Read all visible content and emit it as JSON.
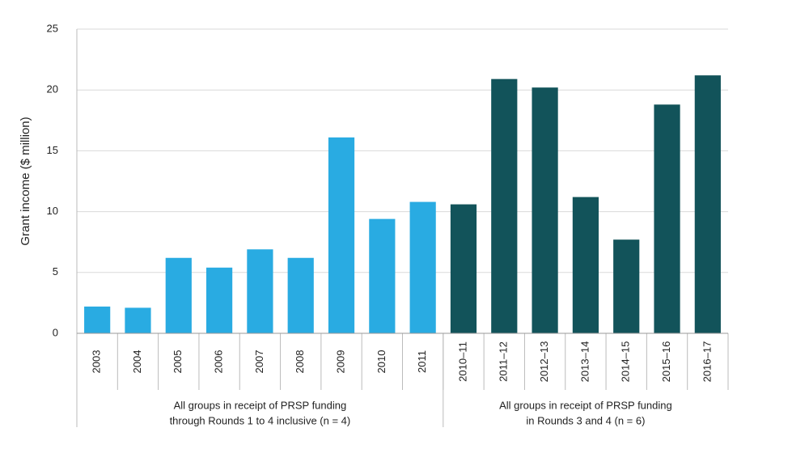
{
  "chart_data": {
    "type": "bar",
    "y_label": "Grant income ($ million)",
    "categories": [
      "2003",
      "2004",
      "2005",
      "2006",
      "2007",
      "2008",
      "2009",
      "2010",
      "2011",
      "2010–11",
      "2011–12",
      "2012–13",
      "2013–14",
      "2014–15",
      "2015–16",
      "2016–17"
    ],
    "series": [
      {
        "name": [
          "All groups in receipt of PRSP funding",
          "through Rounds 1 to 4 inclusive (n = 4)"
        ],
        "color": "#29abe2",
        "values": [
          2.2,
          2.1,
          6.2,
          5.4,
          6.9,
          6.2,
          16.1,
          9.4,
          10.8,
          null,
          null,
          null,
          null,
          null,
          null,
          null
        ]
      },
      {
        "name": [
          "All groups in receipt of PRSP funding",
          "in Rounds 3 and 4 (n = 6)"
        ],
        "color": "#12535a",
        "values": [
          null,
          null,
          null,
          null,
          null,
          null,
          null,
          null,
          null,
          10.6,
          20.9,
          20.2,
          11.2,
          7.7,
          18.8,
          21.2
        ]
      }
    ],
    "ylim": [
      0,
      25
    ],
    "yticks": [
      0,
      5,
      10,
      15,
      20,
      25
    ],
    "grid": true
  }
}
